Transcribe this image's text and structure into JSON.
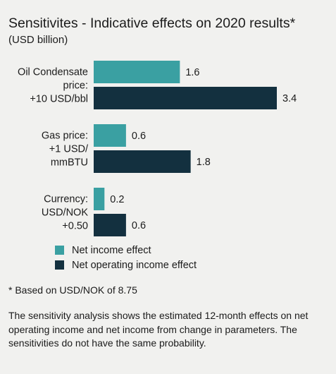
{
  "title": "Sensitivites - Indicative effects on 2020 results*",
  "subtitle": "(USD billion)",
  "chart_data": {
    "type": "bar",
    "orientation": "horizontal",
    "categories": [
      [
        "Oil Condensate",
        "price:",
        "+10 USD/bbl"
      ],
      [
        "Gas price:",
        "+1 USD/",
        "mmBTU"
      ],
      [
        "Currency:",
        "USD/NOK",
        "+0.50"
      ]
    ],
    "series": [
      {
        "name": "Net income effect",
        "color": "#3aa0a2",
        "values": [
          1.6,
          0.6,
          0.2
        ],
        "labels": [
          "1.6",
          "0.6",
          "0.2"
        ]
      },
      {
        "name": "Net operating income effect",
        "color": "#13303f",
        "values": [
          3.4,
          1.8,
          0.6
        ],
        "labels": [
          "3.4",
          "1.8",
          "0.6"
        ]
      }
    ],
    "xlim": [
      0,
      3.4
    ],
    "grid": false,
    "legend_position": "bottom-left"
  },
  "footnote": "* Based on USD/NOK of 8.75",
  "note": "The sensitivity analysis shows the estimated 12-month effects on net operating income and net income from change in parameters. The sensitivities do not have the same probability."
}
